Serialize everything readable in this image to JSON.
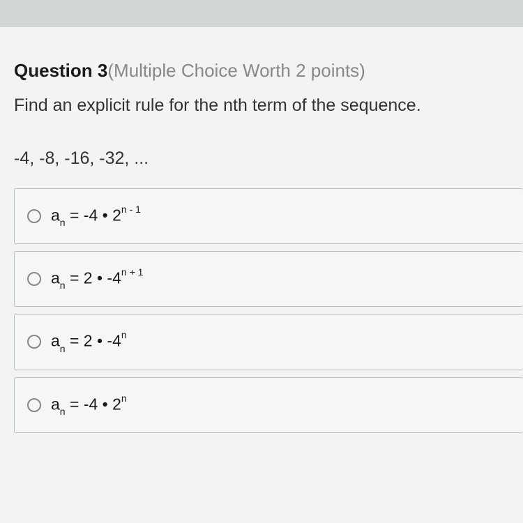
{
  "question": {
    "label": "Question",
    "number": "3",
    "meta": "(Multiple Choice Worth 2 points)",
    "prompt": "Find an explicit rule for the nth term of the sequence.",
    "sequence": "-4, -8, -16, -32, ..."
  },
  "options": [
    {
      "base_left": "a",
      "sub_left": "n",
      "mid": " = -4 • 2",
      "sup": "n - 1",
      "after": ""
    },
    {
      "base_left": "a",
      "sub_left": "n",
      "mid": " = 2 • -4",
      "sup": "n + 1",
      "after": ""
    },
    {
      "base_left": "a",
      "sub_left": "n",
      "mid": " = 2 • -4",
      "sup": "n",
      "after": ""
    },
    {
      "base_left": "a",
      "sub_left": "n",
      "mid": " = -4 • 2",
      "sup": "n",
      "after": ""
    }
  ],
  "style": {
    "background_color": "#f2f4f3",
    "option_bg": "#f5f6f5",
    "option_border": "#b8bcbc",
    "text_color": "#333",
    "meta_color": "#888",
    "radio_border": "#888",
    "title_fontsize": 26,
    "prompt_fontsize": 25,
    "formula_fontsize": 23
  }
}
